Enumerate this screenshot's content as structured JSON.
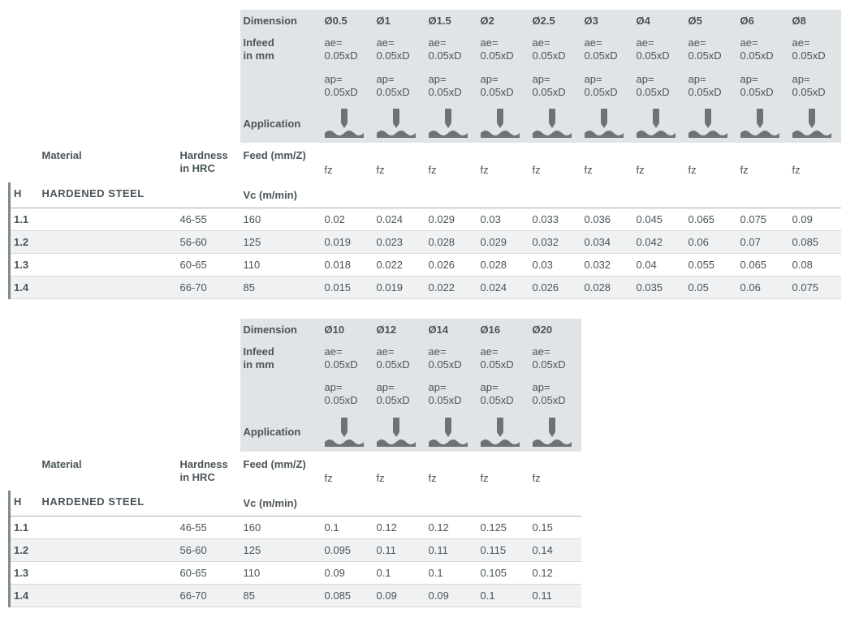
{
  "labels": {
    "dimension": "Dimension",
    "infeed": "Infeed",
    "infeed_unit": "in mm",
    "application": "Application",
    "material": "Material",
    "hardness": "Hardness",
    "hardness_unit": "in HRC",
    "feed": "Feed (mm/Z)",
    "vc": "Vc (m/min)",
    "ae": "ae=",
    "ap": "ap=",
    "fz": "fz"
  },
  "infeed_ae": "0.05xD",
  "infeed_ap": "0.05xD",
  "group": {
    "code": "H",
    "name": "HARDENED STEEL"
  },
  "colors": {
    "text": "#4a5459",
    "header_bg": "#e1e4e6",
    "row_alt_bg": "#f0f1f2",
    "border": "#d6d9da",
    "group_border": "#a8acad",
    "left_bar": "#7f8a90",
    "icon": "#6c7378",
    "background": "#ffffff"
  },
  "tables": [
    {
      "diameters": [
        "Ø0.5",
        "Ø1",
        "Ø1.5",
        "Ø2",
        "Ø2.5",
        "Ø3",
        "Ø4",
        "Ø5",
        "Ø6",
        "Ø8"
      ],
      "rows": [
        {
          "id": "1.1",
          "hrc": "46-55",
          "vc": "160",
          "fz": [
            "0.02",
            "0.024",
            "0.029",
            "0.03",
            "0.033",
            "0.036",
            "0.045",
            "0.065",
            "0.075",
            "0.09"
          ]
        },
        {
          "id": "1.2",
          "hrc": "56-60",
          "vc": "125",
          "fz": [
            "0.019",
            "0.023",
            "0.028",
            "0.029",
            "0.032",
            "0.034",
            "0.042",
            "0.06",
            "0.07",
            "0.085"
          ]
        },
        {
          "id": "1.3",
          "hrc": "60-65",
          "vc": "110",
          "fz": [
            "0.018",
            "0.022",
            "0.026",
            "0.028",
            "0.03",
            "0.032",
            "0.04",
            "0.055",
            "0.065",
            "0.08"
          ]
        },
        {
          "id": "1.4",
          "hrc": "66-70",
          "vc": "85",
          "fz": [
            "0.015",
            "0.019",
            "0.022",
            "0.024",
            "0.026",
            "0.028",
            "0.035",
            "0.05",
            "0.06",
            "0.075"
          ]
        }
      ]
    },
    {
      "diameters": [
        "Ø10",
        "Ø12",
        "Ø14",
        "Ø16",
        "Ø20"
      ],
      "rows": [
        {
          "id": "1.1",
          "hrc": "46-55",
          "vc": "160",
          "fz": [
            "0.1",
            "0.12",
            "0.12",
            "0.125",
            "0.15"
          ]
        },
        {
          "id": "1.2",
          "hrc": "56-60",
          "vc": "125",
          "fz": [
            "0.095",
            "0.11",
            "0.11",
            "0.115",
            "0.14"
          ]
        },
        {
          "id": "1.3",
          "hrc": "60-65",
          "vc": "110",
          "fz": [
            "0.09",
            "0.1",
            "0.1",
            "0.105",
            "0.12"
          ]
        },
        {
          "id": "1.4",
          "hrc": "66-70",
          "vc": "85",
          "fz": [
            "0.085",
            "0.09",
            "0.09",
            "0.1",
            "0.11"
          ]
        }
      ]
    }
  ]
}
